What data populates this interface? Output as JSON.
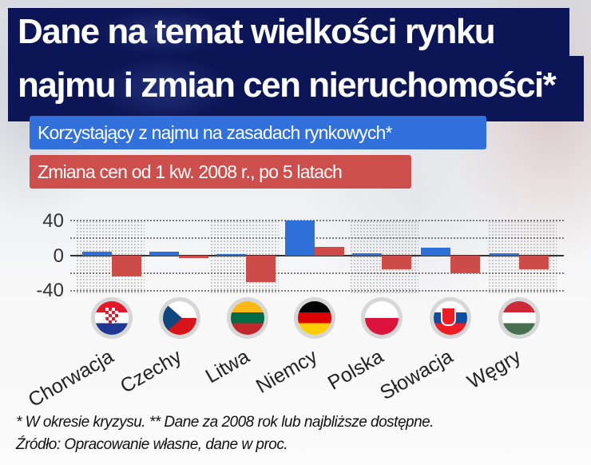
{
  "title": {
    "line1": "Dane na temat wielkości rynku",
    "line2": "najmu i zmian cen nieruchomości*"
  },
  "legend": [
    {
      "label": "Korzystający z najmu na zasadach rynkowych*",
      "color": "#3271dc"
    },
    {
      "label": "Zmiana cen od 1 kw. 2008 r., po 5 latach",
      "color": "#cc4f4d"
    }
  ],
  "footnotes": {
    "line1": "* W okresie kryzysu. ** Dane za 2008 rok lub najbliższe dostępne.",
    "line2": "Źródło: Opracowanie własne, dane w proc."
  },
  "axis": {
    "ticks": [
      "40",
      "0",
      "-40"
    ]
  },
  "countries": [
    {
      "name": "Chorwacja",
      "flag": "croatia-flag"
    },
    {
      "name": "Czechy",
      "flag": "czech-flag"
    },
    {
      "name": "Litwa",
      "flag": "lithuania-flag"
    },
    {
      "name": "Niemcy",
      "flag": "germany-flag"
    },
    {
      "name": "Polska",
      "flag": "poland-flag"
    },
    {
      "name": "Słowacja",
      "flag": "slovakia-flag"
    },
    {
      "name": "Węgry",
      "flag": "hungary-flag"
    }
  ],
  "chart_data": {
    "type": "bar",
    "title": "Dane na temat wielkości rynku najmu i zmian cen nieruchomości*",
    "categories": [
      "Chorwacja",
      "Czechy",
      "Litwa",
      "Niemcy",
      "Polska",
      "Słowacja",
      "Węgry"
    ],
    "series": [
      {
        "name": "Korzystający z najmu na zasadach rynkowych*",
        "color": "#3271dc",
        "values": [
          5,
          5,
          2,
          40,
          3,
          9,
          3
        ]
      },
      {
        "name": "Zmiana cen od 1 kw. 2008 r., po 5 latach",
        "color": "#cc4f4d",
        "values": [
          -24,
          -3,
          -30,
          10,
          -15,
          -20,
          -15
        ]
      }
    ],
    "xlabel": "",
    "ylabel": "",
    "yticks": [
      40,
      0,
      -40
    ],
    "ylim": [
      -45,
      45
    ],
    "grid": true,
    "gridlines": [
      40,
      20,
      -20,
      -40
    ],
    "legend_position": "top-left",
    "units": "proc."
  }
}
